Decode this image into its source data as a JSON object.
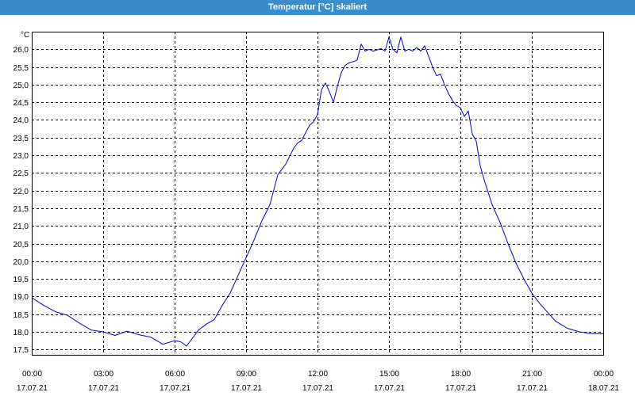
{
  "window": {
    "title": "Temperatur [°C] skaliert"
  },
  "colors": {
    "title_bar": "#3a8ccc",
    "title_text": "#ffffff",
    "series_line": "#0000cc",
    "grid": "#000000",
    "background": "#ffffff"
  },
  "chart_data": {
    "type": "line",
    "title": "Temperatur [°C] skaliert",
    "unit_label": "°C",
    "xlabel": "",
    "ylabel": "",
    "grid": true,
    "legend": "none",
    "ylim": [
      17.35,
      26.5
    ],
    "y_ticks": [
      "17,5",
      "18,0",
      "18,5",
      "19,0",
      "19,5",
      "20,0",
      "20,5",
      "21,0",
      "21,5",
      "22,0",
      "22,5",
      "23,0",
      "23,5",
      "24,0",
      "24,5",
      "25,0",
      "25,5",
      "26,0"
    ],
    "x_ticks": [
      {
        "time": "00:00",
        "date": "17.07.21"
      },
      {
        "time": "03:00",
        "date": "17.07.21"
      },
      {
        "time": "06:00",
        "date": "17.07.21"
      },
      {
        "time": "09:00",
        "date": "17.07.21"
      },
      {
        "time": "12:00",
        "date": "17.07.21"
      },
      {
        "time": "15:00",
        "date": "17.07.21"
      },
      {
        "time": "18:00",
        "date": "17.07.21"
      },
      {
        "time": "21:00",
        "date": "17.07.21"
      },
      {
        "time": "00:00",
        "date": "18.07.21"
      }
    ],
    "series": [
      {
        "time": [
          "00:00",
          "00:30",
          "01:00",
          "01:30",
          "02:00",
          "02:30",
          "03:00",
          "03:30",
          "04:00",
          "04:30",
          "05:00",
          "05:30",
          "06:00",
          "06:15",
          "06:30",
          "06:45",
          "07:00",
          "07:20",
          "07:40",
          "08:00",
          "08:20",
          "08:40",
          "09:00",
          "09:20",
          "09:40",
          "10:00",
          "10:20",
          "10:40",
          "11:00",
          "11:10",
          "11:20",
          "11:40",
          "11:50",
          "12:00",
          "12:10",
          "12:20",
          "12:30",
          "12:40",
          "12:50",
          "13:00",
          "13:10",
          "13:20",
          "13:30",
          "13:40",
          "13:50",
          "14:00",
          "14:10",
          "14:20",
          "14:30",
          "14:40",
          "14:50",
          "15:00",
          "15:10",
          "15:20",
          "15:30",
          "15:40",
          "15:50",
          "16:00",
          "16:10",
          "16:20",
          "16:30",
          "16:40",
          "16:50",
          "17:00",
          "17:10",
          "17:20",
          "17:30",
          "17:40",
          "17:50",
          "18:00",
          "18:10",
          "18:20",
          "18:30",
          "18:40",
          "18:50",
          "19:00",
          "19:20",
          "19:40",
          "20:00",
          "20:20",
          "20:40",
          "21:00",
          "21:20",
          "21:40",
          "22:00",
          "22:30",
          "23:00",
          "23:30",
          "24:00"
        ],
        "values": [
          18.97,
          18.75,
          18.57,
          18.47,
          18.25,
          18.05,
          18.0,
          17.9,
          18.02,
          17.92,
          17.85,
          17.65,
          17.75,
          17.72,
          17.6,
          17.82,
          18.05,
          18.22,
          18.35,
          18.75,
          19.1,
          19.6,
          20.1,
          20.6,
          21.15,
          21.6,
          22.45,
          22.75,
          23.2,
          23.35,
          23.42,
          23.85,
          23.95,
          24.15,
          24.85,
          25.05,
          24.8,
          24.5,
          24.95,
          25.35,
          25.55,
          25.62,
          25.65,
          25.7,
          26.15,
          25.95,
          26.0,
          25.95,
          25.98,
          26.02,
          25.95,
          26.35,
          26.0,
          25.9,
          26.35,
          25.95,
          26.0,
          25.95,
          26.05,
          25.95,
          26.1,
          25.8,
          25.5,
          25.25,
          25.3,
          25.0,
          24.75,
          24.55,
          24.4,
          24.35,
          24.1,
          24.25,
          23.6,
          23.4,
          22.7,
          22.3,
          21.6,
          21.1,
          20.5,
          19.95,
          19.5,
          19.1,
          18.8,
          18.55,
          18.3,
          18.1,
          18.0,
          17.95,
          17.95
        ]
      }
    ]
  }
}
